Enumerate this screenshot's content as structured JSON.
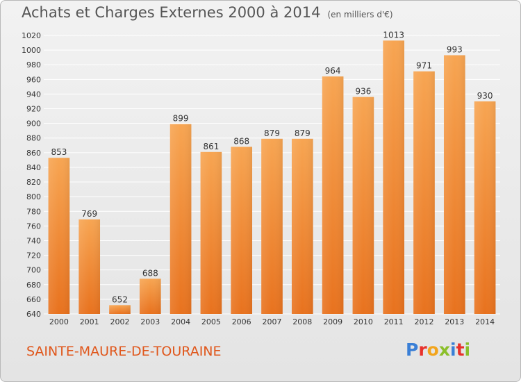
{
  "header": {
    "title": "Achats et Charges Externes 2000 à 2014",
    "unit": "(en milliers d'€)"
  },
  "place_name": "SAINTE-MAURE-DE-TOURAINE",
  "logo": {
    "text": "Proxiti",
    "letters": [
      {
        "ch": "P",
        "color": "#3a7fd6"
      },
      {
        "ch": "r",
        "color": "#e8312b"
      },
      {
        "ch": "o",
        "color": "#f2a51d"
      },
      {
        "ch": "x",
        "color": "#8bbf2a"
      },
      {
        "ch": "i",
        "color": "#3a7fd6"
      },
      {
        "ch": "t",
        "color": "#e8312b"
      },
      {
        "ch": "i",
        "color": "#8bbf2a"
      }
    ]
  },
  "chart_data": {
    "type": "bar",
    "title": "Achats et Charges Externes 2000 à 2014",
    "categories": [
      "2000",
      "2001",
      "2002",
      "2003",
      "2004",
      "2005",
      "2006",
      "2007",
      "2008",
      "2009",
      "2010",
      "2011",
      "2012",
      "2013",
      "2014"
    ],
    "values": [
      853,
      769,
      652,
      688,
      899,
      861,
      868,
      879,
      879,
      964,
      936,
      1013,
      971,
      993,
      930
    ],
    "ylim": [
      640,
      1020
    ],
    "ytick_step": 20,
    "grid": true,
    "legend": "none",
    "colors": {
      "bar_top": "#f7a552",
      "bar_bottom": "#e8721e",
      "grid": "#ffffff",
      "axis_text": "#333333"
    }
  }
}
